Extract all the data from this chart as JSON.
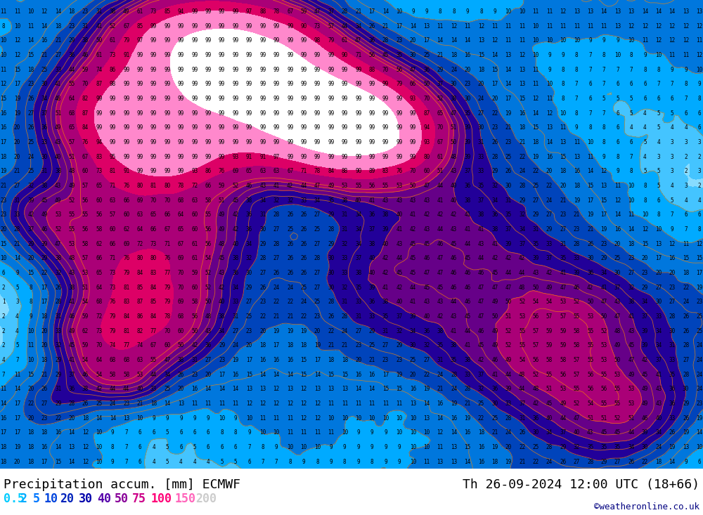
{
  "title_left": "Precipitation accum. [mm] ECMWF",
  "title_right": "Th 26-09-2024 12:00 UTC (18+66)",
  "credit": "©weatheronline.co.uk",
  "legend_labels": [
    "0.5",
    "2",
    "5",
    "10",
    "20",
    "30",
    "40",
    "50",
    "75",
    "100",
    "150",
    "200"
  ],
  "legend_text_colors": [
    "#00ccff",
    "#00aaff",
    "#0077ff",
    "#0044dd",
    "#0022bb",
    "#0000aa",
    "#5500aa",
    "#880099",
    "#cc0088",
    "#ff0077",
    "#ff66bb",
    "#cccccc"
  ],
  "colormap_levels": [
    0,
    0.5,
    2,
    5,
    10,
    20,
    30,
    40,
    50,
    75,
    100,
    150,
    200
  ],
  "colormap_colors": [
    "#c8f0ff",
    "#88dcff",
    "#44c4ff",
    "#00aaff",
    "#0077dd",
    "#0044bb",
    "#220099",
    "#660088",
    "#aa0077",
    "#dd0066",
    "#ff88cc",
    "#ffffff"
  ],
  "figsize": [
    10.0,
    7.33
  ],
  "dpi": 100
}
